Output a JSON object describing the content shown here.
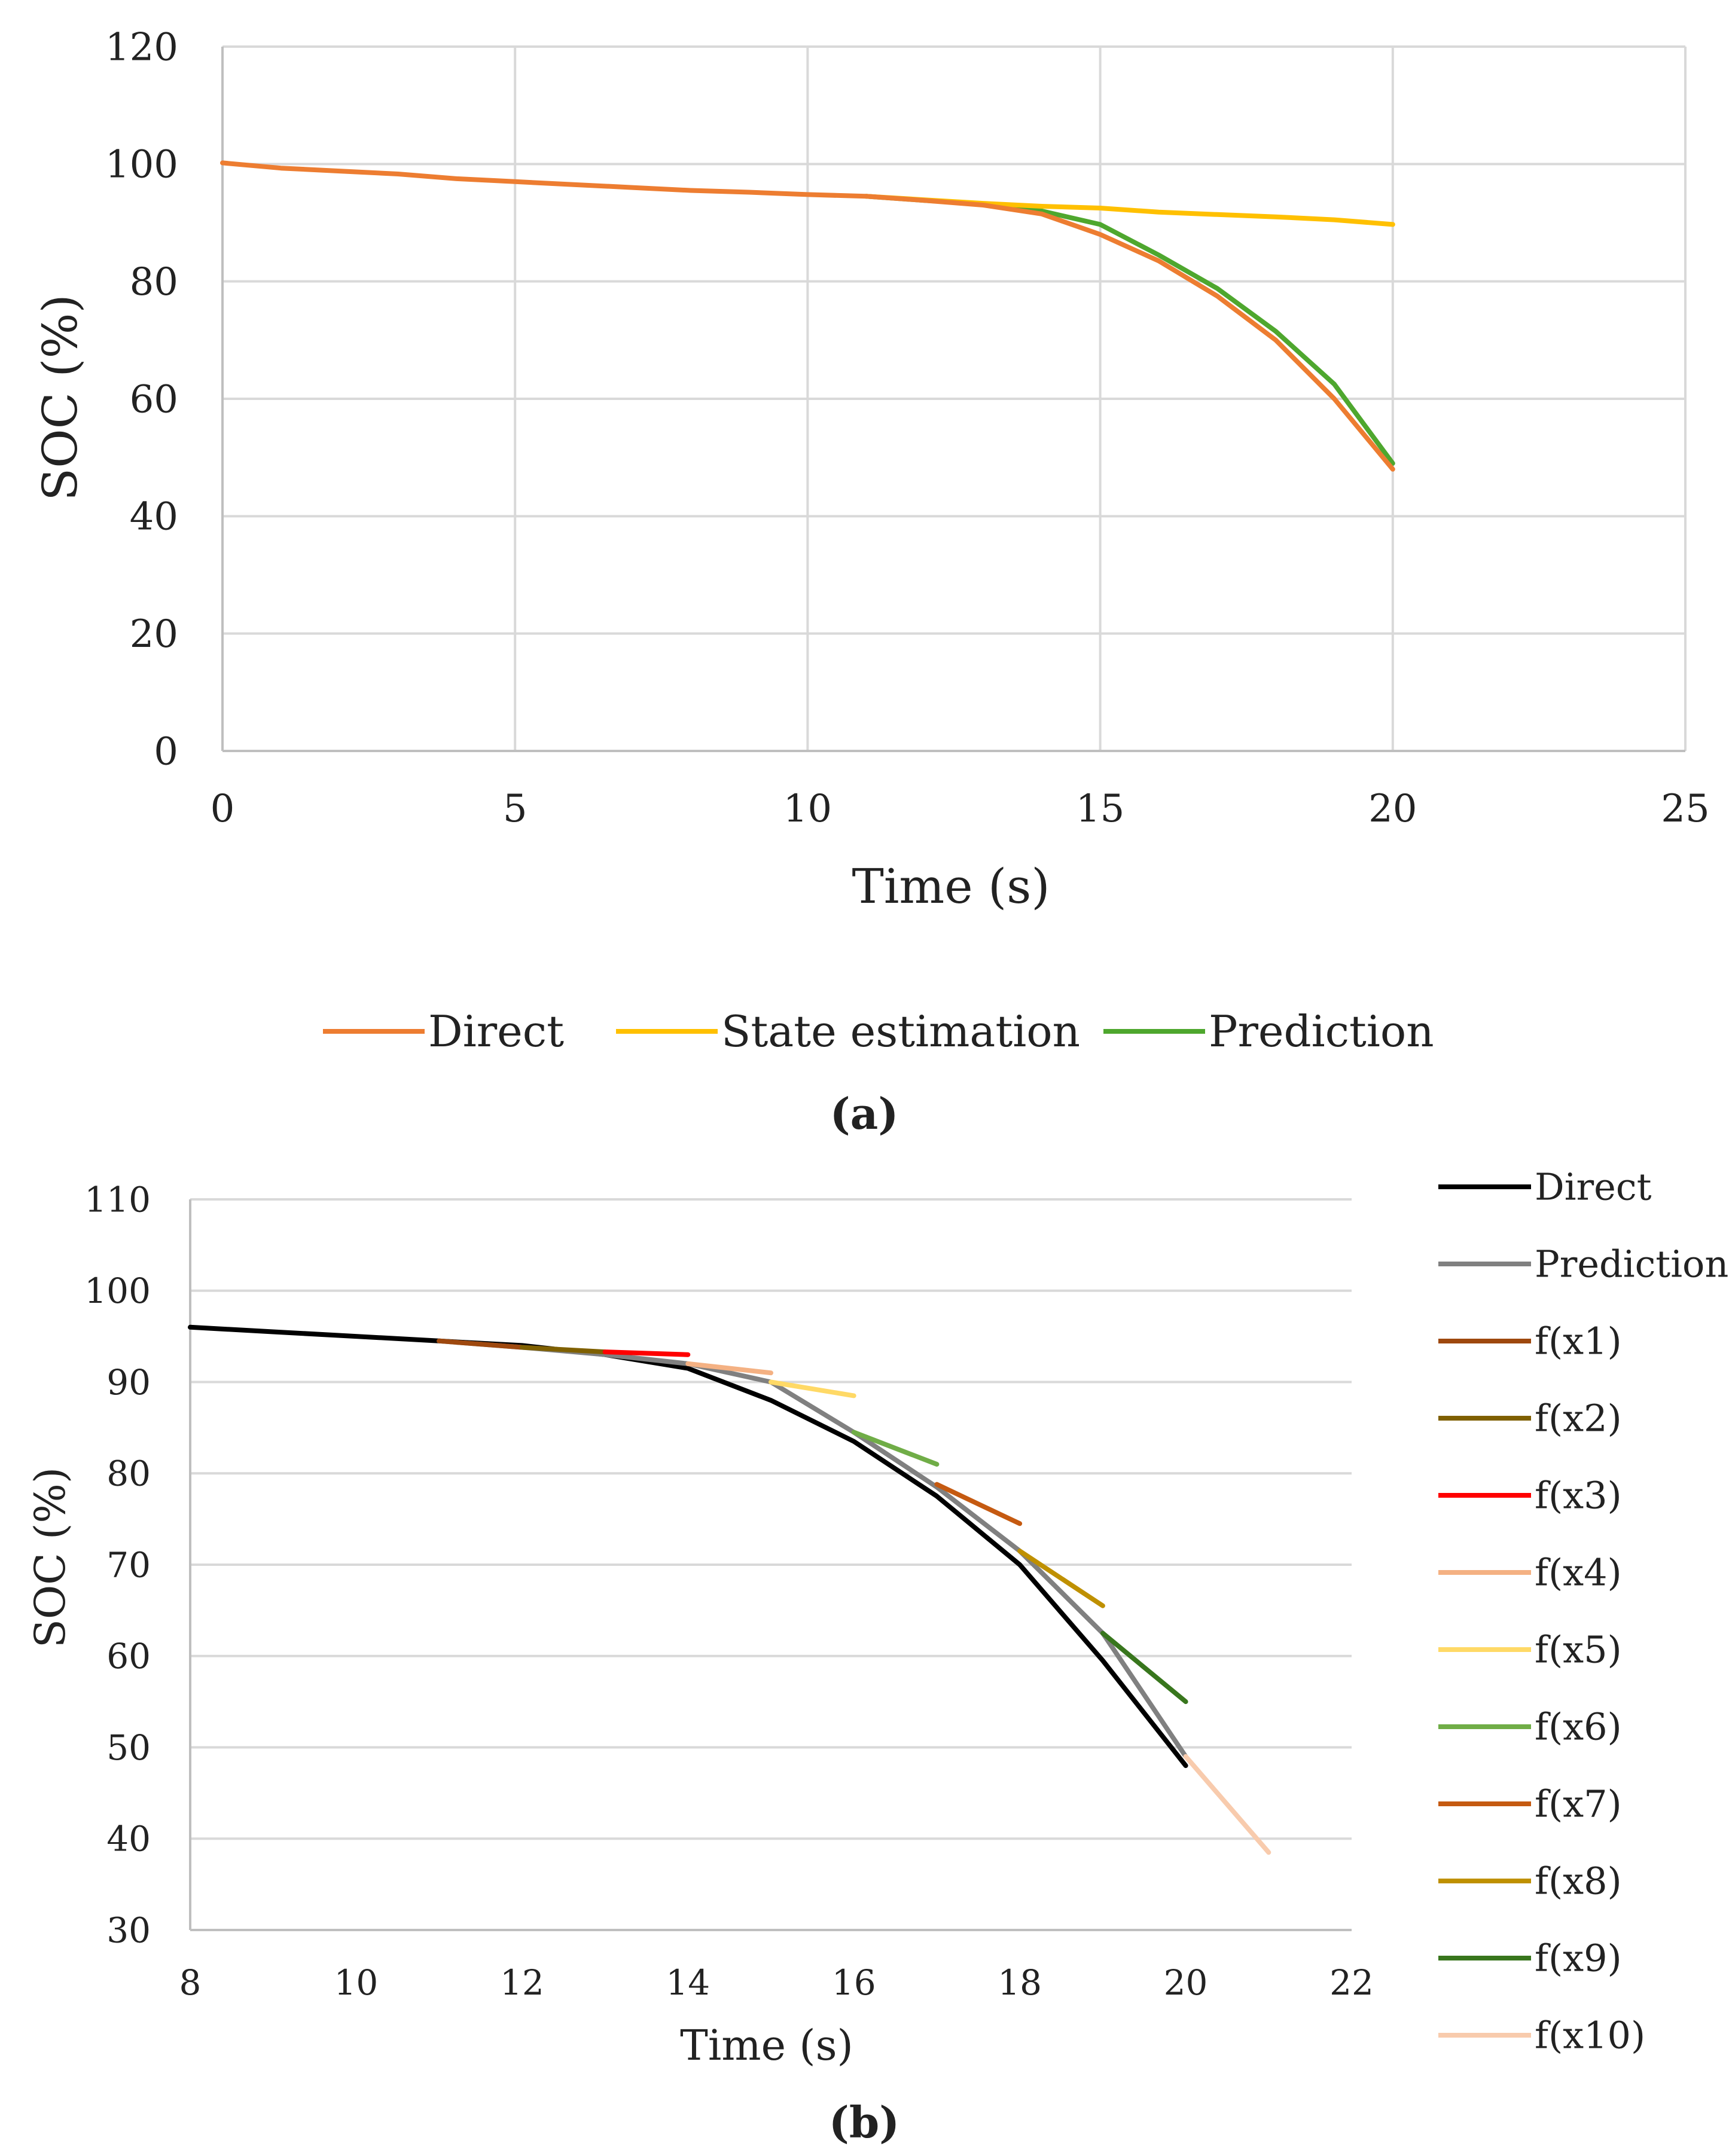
{
  "chart_data": [
    {
      "type": "line",
      "panel_label": "(a)",
      "title": "",
      "xlabel": "Time (s)",
      "ylabel": "SOC (%)",
      "xlim": [
        0,
        25
      ],
      "ylim": [
        0,
        120
      ],
      "x_ticks": [
        0,
        5,
        10,
        15,
        20,
        25
      ],
      "y_ticks": [
        0,
        20,
        40,
        60,
        80,
        100,
        120
      ],
      "grid": true,
      "legend_position": "bottom",
      "series": [
        {
          "name": "Direct",
          "color": "#ED7D31",
          "x": [
            0,
            1,
            2,
            3,
            4,
            5,
            6,
            7,
            8,
            9,
            10,
            11,
            12,
            13,
            14,
            15,
            16,
            17,
            18,
            19,
            20
          ],
          "values": [
            100.2,
            99.3,
            98.8,
            98.3,
            97.5,
            97.0,
            96.5,
            96.0,
            95.5,
            95.2,
            94.8,
            94.5,
            93.8,
            93.0,
            91.5,
            88.0,
            83.5,
            77.5,
            70.0,
            60.0,
            48.0
          ]
        },
        {
          "name": "State estimation",
          "color": "#FFC000",
          "x": [
            11,
            12,
            13,
            14,
            15,
            16,
            17,
            18,
            19,
            20
          ],
          "values": [
            94.5,
            93.9,
            93.3,
            92.8,
            92.5,
            91.8,
            91.4,
            91.0,
            90.5,
            89.7
          ]
        },
        {
          "name": "Prediction",
          "color": "#4EA72E",
          "x": [
            11,
            12,
            13,
            14,
            15,
            16,
            17,
            18,
            19,
            20
          ],
          "values": [
            94.5,
            93.8,
            93.2,
            92.0,
            89.7,
            84.5,
            78.8,
            71.5,
            62.5,
            49.0
          ]
        }
      ]
    },
    {
      "type": "line",
      "panel_label": "(b)",
      "title": "",
      "xlabel": "Time (s)",
      "ylabel": "SOC (%)",
      "xlim": [
        8,
        22
      ],
      "ylim": [
        30,
        110
      ],
      "x_ticks": [
        8,
        10,
        12,
        14,
        16,
        18,
        20,
        22
      ],
      "y_ticks": [
        30,
        40,
        50,
        60,
        70,
        80,
        90,
        100,
        110
      ],
      "grid": true,
      "legend_position": "right",
      "series": [
        {
          "name": "Direct",
          "color": "#000000",
          "x": [
            8,
            9,
            10,
            11,
            12,
            13,
            14,
            15,
            16,
            17,
            18,
            19,
            20
          ],
          "values": [
            96.0,
            95.5,
            95.0,
            94.5,
            94.0,
            93.0,
            91.5,
            88.0,
            83.5,
            77.5,
            70.0,
            59.5,
            48.0
          ]
        },
        {
          "name": "Prediction",
          "color": "#808080",
          "x": [
            11,
            12,
            13,
            14,
            15,
            16,
            17,
            18,
            19,
            20
          ],
          "values": [
            94.5,
            93.8,
            93.0,
            92.0,
            90.0,
            84.5,
            78.5,
            71.5,
            62.5,
            49.0
          ]
        },
        {
          "name": "f(x1)",
          "color": "#9E480E",
          "x": [
            11,
            12
          ],
          "values": [
            94.5,
            93.8
          ]
        },
        {
          "name": "f(x2)",
          "color": "#7F6000",
          "x": [
            12,
            13
          ],
          "values": [
            93.8,
            93.3
          ]
        },
        {
          "name": "f(x3)",
          "color": "#FF0000",
          "x": [
            13,
            14
          ],
          "values": [
            93.3,
            93.0
          ]
        },
        {
          "name": "f(x4)",
          "color": "#F4B183",
          "x": [
            14,
            15
          ],
          "values": [
            92.0,
            91.0
          ]
        },
        {
          "name": "f(x5)",
          "color": "#FFD966",
          "x": [
            15,
            16
          ],
          "values": [
            90.0,
            88.5
          ]
        },
        {
          "name": "f(x6)",
          "color": "#70AD47",
          "x": [
            16,
            17
          ],
          "values": [
            84.5,
            81.0
          ]
        },
        {
          "name": "f(x7)",
          "color": "#C55A11",
          "x": [
            17,
            18
          ],
          "values": [
            78.8,
            74.5
          ]
        },
        {
          "name": "f(x8)",
          "color": "#BF9000",
          "x": [
            18,
            19
          ],
          "values": [
            71.5,
            65.5
          ]
        },
        {
          "name": "f(x9)",
          "color": "#38761D",
          "x": [
            19,
            20
          ],
          "values": [
            62.5,
            55.0
          ]
        },
        {
          "name": "f(x10)",
          "color": "#F8CBAD",
          "x": [
            20,
            21
          ],
          "values": [
            49.0,
            38.5
          ]
        }
      ]
    }
  ]
}
